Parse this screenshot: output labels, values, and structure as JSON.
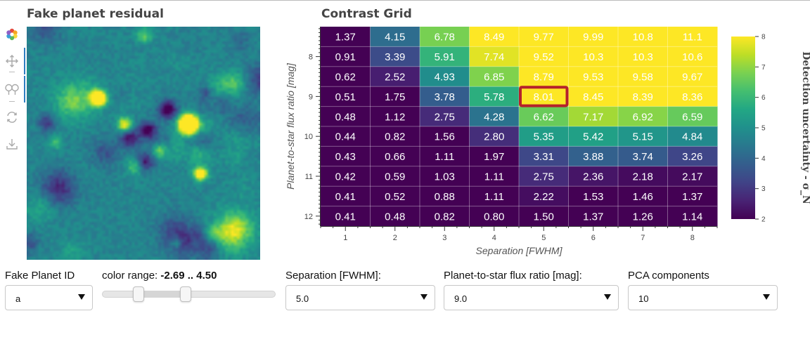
{
  "left_panel": {
    "title": "Fake planet residual"
  },
  "toolbar": {
    "tools": [
      "bokeh-logo-icon",
      "pan-icon",
      "wheel-zoom-icon",
      "reset-icon",
      "save-icon"
    ]
  },
  "right_panel": {
    "title": "Contrast Grid"
  },
  "chart_data": {
    "type": "heatmap",
    "title": "Contrast Grid",
    "xlabel": "Separation [FWHM]",
    "ylabel": "Planet-to-star flux ratio [mag]",
    "x": [
      1,
      2,
      3,
      4,
      5,
      6,
      7,
      8
    ],
    "y": [
      7.5,
      8,
      8.5,
      9,
      9.5,
      10,
      10.5,
      11,
      11.5,
      12
    ],
    "x_ticks": [
      1,
      2,
      3,
      4,
      5,
      6,
      7,
      8
    ],
    "y_ticks": [
      8,
      9,
      10,
      11,
      12
    ],
    "values": [
      [
        1.37,
        4.15,
        6.78,
        8.49,
        9.77,
        9.99,
        10.8,
        11.1
      ],
      [
        0.91,
        3.39,
        5.91,
        7.74,
        9.52,
        10.3,
        10.3,
        10.6
      ],
      [
        0.62,
        2.52,
        4.93,
        6.85,
        8.79,
        9.53,
        9.58,
        9.67
      ],
      [
        0.51,
        1.75,
        3.78,
        5.78,
        8.01,
        8.45,
        8.39,
        8.36
      ],
      [
        0.48,
        1.12,
        2.75,
        4.28,
        6.62,
        7.17,
        6.92,
        6.59
      ],
      [
        0.44,
        0.82,
        1.56,
        2.8,
        5.35,
        5.42,
        5.15,
        4.84
      ],
      [
        0.43,
        0.66,
        1.11,
        1.97,
        3.31,
        3.88,
        3.74,
        3.26
      ],
      [
        0.42,
        0.59,
        1.03,
        1.11,
        2.75,
        2.36,
        2.18,
        2.17
      ],
      [
        0.41,
        0.52,
        0.88,
        1.11,
        2.22,
        1.53,
        1.46,
        1.37
      ],
      [
        0.41,
        0.48,
        0.82,
        0.8,
        1.5,
        1.37,
        1.26,
        1.14
      ]
    ],
    "labels": [
      [
        "1.37",
        "4.15",
        "6.78",
        "8.49",
        "9.77",
        "9.99",
        "10.8",
        "11.1"
      ],
      [
        "0.91",
        "3.39",
        "5.91",
        "7.74",
        "9.52",
        "10.3",
        "10.3",
        "10.6"
      ],
      [
        "0.62",
        "2.52",
        "4.93",
        "6.85",
        "8.79",
        "9.53",
        "9.58",
        "9.67"
      ],
      [
        "0.51",
        "1.75",
        "3.78",
        "5.78",
        "8.01",
        "8.45",
        "8.39",
        "8.36"
      ],
      [
        "0.48",
        "1.12",
        "2.75",
        "4.28",
        "6.62",
        "7.17",
        "6.92",
        "6.59"
      ],
      [
        "0.44",
        "0.82",
        "1.56",
        "2.80",
        "5.35",
        "5.42",
        "5.15",
        "4.84"
      ],
      [
        "0.43",
        "0.66",
        "1.11",
        "1.97",
        "3.31",
        "3.88",
        "3.74",
        "3.26"
      ],
      [
        "0.42",
        "0.59",
        "1.03",
        "1.11",
        "2.75",
        "2.36",
        "2.18",
        "2.17"
      ],
      [
        "0.41",
        "0.52",
        "0.88",
        "1.11",
        "2.22",
        "1.53",
        "1.46",
        "1.37"
      ],
      [
        "0.41",
        "0.48",
        "0.82",
        "0.80",
        "1.50",
        "1.37",
        "1.26",
        "1.14"
      ]
    ],
    "selected": {
      "x": 5,
      "y": 9
    },
    "selected_color": "#b5222b",
    "color_range": [
      2,
      8
    ],
    "colormap": "viridis",
    "colorbar": {
      "label": "Detection uncertainty - σ_N",
      "ticks": [
        2,
        3,
        4,
        5,
        6,
        7,
        8
      ]
    }
  },
  "controls": {
    "fake_planet_id": {
      "label": "Fake Planet ID",
      "value": "a"
    },
    "color_range": {
      "label": "color range: ",
      "value_text": "-2.69 .. 4.50",
      "min": -2.69,
      "max": 4.5,
      "handle_low_fraction": 0.21,
      "handle_high_fraction": 0.48
    },
    "separation": {
      "label": "Separation [FWHM]:",
      "value": "5.0"
    },
    "flux_ratio": {
      "label": "Planet-to-star flux ratio [mag]:",
      "value": "9.0"
    },
    "pca": {
      "label": "PCA components",
      "value": "10"
    }
  }
}
